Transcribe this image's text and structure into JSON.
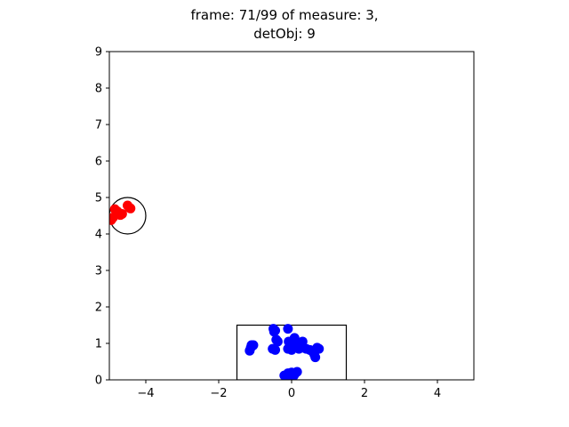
{
  "chart_data": {
    "type": "scatter",
    "title_lines": [
      "frame: 71/99 of measure: 3,",
      "detObj: 9"
    ],
    "xlabel": "",
    "ylabel": "",
    "xlim": [
      -5,
      5
    ],
    "ylim": [
      0,
      9
    ],
    "x_ticks": [
      -4,
      -2,
      0,
      2,
      4
    ],
    "x_tick_labels": [
      "−4",
      "−2",
      "0",
      "2",
      "4"
    ],
    "y_ticks": [
      0,
      1,
      2,
      3,
      4,
      5,
      6,
      7,
      8,
      9
    ],
    "y_tick_labels": [
      "0",
      "1",
      "2",
      "3",
      "4",
      "5",
      "6",
      "7",
      "8",
      "9"
    ],
    "grid": false,
    "series": [
      {
        "color": "#ff0000",
        "points": [
          [
            -4.95,
            4.38
          ],
          [
            -4.98,
            4.42
          ],
          [
            -4.9,
            4.45
          ],
          [
            -4.85,
            4.68
          ],
          [
            -4.78,
            4.62
          ],
          [
            -4.75,
            4.58
          ],
          [
            -4.7,
            4.52
          ],
          [
            -4.65,
            4.55
          ],
          [
            -4.5,
            4.78
          ],
          [
            -4.45,
            4.72
          ],
          [
            -4.42,
            4.7
          ]
        ]
      },
      {
        "color": "#0000ff",
        "points": [
          [
            -1.1,
            0.95
          ],
          [
            -1.12,
            0.88
          ],
          [
            -1.15,
            0.8
          ],
          [
            -1.05,
            0.95
          ],
          [
            -0.5,
            1.4
          ],
          [
            -0.48,
            1.32
          ],
          [
            -0.45,
            1.35
          ],
          [
            -0.42,
            1.1
          ],
          [
            -0.38,
            1.05
          ],
          [
            -0.52,
            0.85
          ],
          [
            -0.45,
            0.82
          ],
          [
            -0.1,
            1.4
          ],
          [
            -0.08,
            1.05
          ],
          [
            -0.05,
            0.95
          ],
          [
            -0.1,
            0.85
          ],
          [
            0.0,
            0.82
          ],
          [
            0.05,
            0.9
          ],
          [
            0.08,
            1.15
          ],
          [
            0.1,
            1.05
          ],
          [
            0.15,
            0.92
          ],
          [
            0.2,
            0.85
          ],
          [
            0.25,
            1.0
          ],
          [
            0.3,
            1.05
          ],
          [
            0.32,
            0.88
          ],
          [
            0.4,
            0.85
          ],
          [
            0.5,
            0.82
          ],
          [
            0.55,
            0.8
          ],
          [
            0.62,
            0.7
          ],
          [
            0.65,
            0.62
          ],
          [
            0.7,
            0.88
          ],
          [
            0.75,
            0.85
          ],
          [
            -0.2,
            0.12
          ],
          [
            -0.15,
            0.08
          ],
          [
            -0.1,
            0.18
          ],
          [
            0.0,
            0.2
          ],
          [
            0.05,
            0.1
          ],
          [
            0.15,
            0.22
          ],
          [
            -0.05,
            0.05
          ],
          [
            0.08,
            0.15
          ]
        ]
      }
    ],
    "shapes": [
      {
        "kind": "circle",
        "center": [
          -4.5,
          4.5
        ],
        "radius": 0.5,
        "edgecolor": "#000000"
      },
      {
        "kind": "rectangle",
        "x0": -1.5,
        "y0": 0,
        "x1": 1.5,
        "y1": 1.5,
        "edgecolor": "#000000"
      }
    ]
  }
}
